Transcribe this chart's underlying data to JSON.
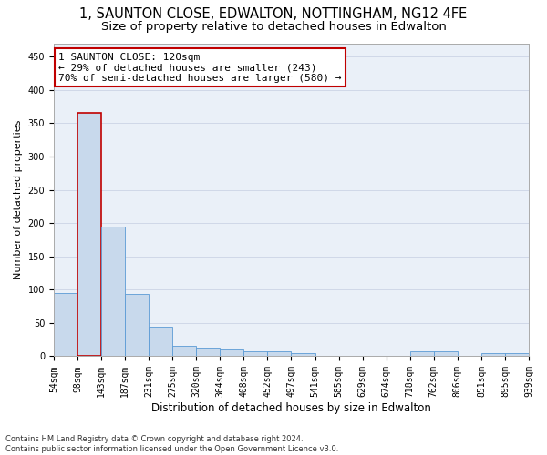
{
  "title1": "1, SAUNTON CLOSE, EDWALTON, NOTTINGHAM, NG12 4FE",
  "title2": "Size of property relative to detached houses in Edwalton",
  "xlabel": "Distribution of detached houses by size in Edwalton",
  "ylabel": "Number of detached properties",
  "footer1": "Contains HM Land Registry data © Crown copyright and database right 2024.",
  "footer2": "Contains public sector information licensed under the Open Government Licence v3.0.",
  "annotation_line1": "1 SAUNTON CLOSE: 120sqm",
  "annotation_line2": "← 29% of detached houses are smaller (243)",
  "annotation_line3": "70% of semi-detached houses are larger (580) →",
  "property_size_sqm": 120,
  "bar_heights": [
    95,
    365,
    195,
    93,
    45,
    15,
    13,
    10,
    8,
    7,
    5,
    1,
    1,
    0,
    0,
    7,
    7,
    0,
    5,
    5
  ],
  "tick_labels": [
    "54sqm",
    "98sqm",
    "143sqm",
    "187sqm",
    "231sqm",
    "275sqm",
    "320sqm",
    "364sqm",
    "408sqm",
    "452sqm",
    "497sqm",
    "541sqm",
    "585sqm",
    "629sqm",
    "674sqm",
    "718sqm",
    "762sqm",
    "806sqm",
    "851sqm",
    "895sqm",
    "939sqm"
  ],
  "bar_color": "#c8d9ec",
  "bar_edge_color": "#5b9bd5",
  "highlight_bar_index": 1,
  "highlight_bar_edge_color": "#c00000",
  "grid_color": "#d0d8e8",
  "background_color": "#eaf0f8",
  "ylim": [
    0,
    470
  ],
  "yticks": [
    0,
    50,
    100,
    150,
    200,
    250,
    300,
    350,
    400,
    450
  ],
  "title1_fontsize": 10.5,
  "title2_fontsize": 9.5,
  "xlabel_fontsize": 8.5,
  "ylabel_fontsize": 8,
  "tick_fontsize": 7,
  "annotation_fontsize": 8,
  "footer_fontsize": 6
}
